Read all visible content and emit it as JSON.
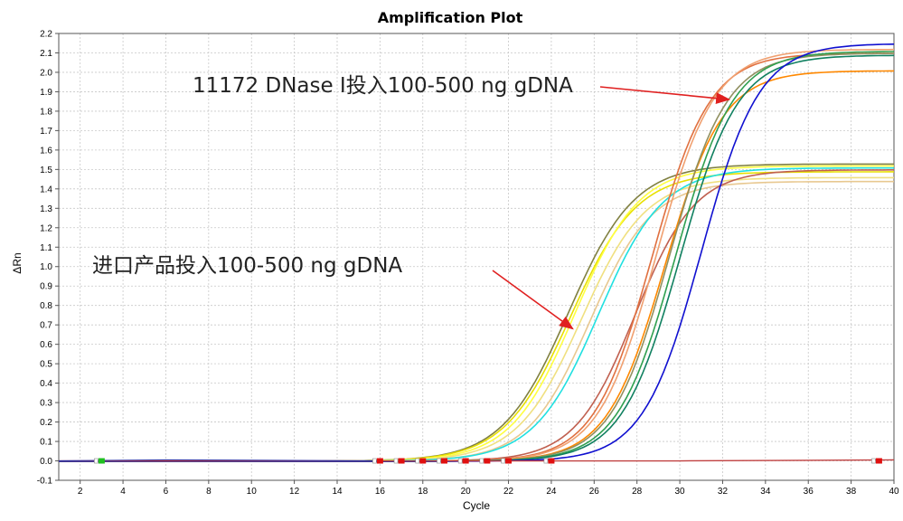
{
  "chart_data": {
    "type": "line",
    "title": "Amplification Plot",
    "xlabel": "Cycle",
    "ylabel": "ΔRn",
    "xlim": [
      1,
      40
    ],
    "ylim": [
      -0.1,
      2.2
    ],
    "xticks": [
      "2",
      "4",
      "6",
      "8",
      "10",
      "12",
      "14",
      "16",
      "18",
      "20",
      "22",
      "24",
      "26",
      "28",
      "30",
      "32",
      "34",
      "36",
      "38",
      "40"
    ],
    "yticks": [
      "-0.1",
      "0.0",
      "0.1",
      "0.2",
      "0.3",
      "0.4",
      "0.5",
      "0.6",
      "0.7",
      "0.8",
      "0.9",
      "1.0",
      "1.1",
      "1.2",
      "1.3",
      "1.4",
      "1.5",
      "1.6",
      "1.7",
      "1.8",
      "1.9",
      "2.0",
      "2.1",
      "2.2"
    ],
    "grid": true,
    "annotations": [
      {
        "text": "11172 DNase I投入100-500 ng gDNA",
        "arrow_to": [
          32.3,
          1.86
        ]
      },
      {
        "text": "进口产品投入100-500 ng gDNA",
        "arrow_to": [
          25.0,
          0.68
        ]
      }
    ],
    "series": [
      {
        "color": "#808040",
        "x_mid": 24.8,
        "plateau": 1.53,
        "slope": 1.55
      },
      {
        "color": "#e8e000",
        "x_mid": 24.9,
        "plateau": 1.49,
        "slope": 1.55
      },
      {
        "color": "#ffff40",
        "x_mid": 25.1,
        "plateau": 1.52,
        "slope": 1.5
      },
      {
        "color": "#f0e080",
        "x_mid": 25.4,
        "plateau": 1.46,
        "slope": 1.5
      },
      {
        "color": "#e8c890",
        "x_mid": 25.8,
        "plateau": 1.44,
        "slope": 1.45
      },
      {
        "color": "#20e0e0",
        "x_mid": 26.2,
        "plateau": 1.51,
        "slope": 1.5
      },
      {
        "color": "#c06050",
        "x_mid": 27.9,
        "plateau": 1.5,
        "slope": 1.4
      },
      {
        "color": "#e07040",
        "x_mid": 28.7,
        "plateau": 2.1,
        "slope": 1.35
      },
      {
        "color": "#f0a070",
        "x_mid": 28.9,
        "plateau": 2.12,
        "slope": 1.35
      },
      {
        "color": "#ff8800",
        "x_mid": 29.3,
        "plateau": 2.01,
        "slope": 1.35
      },
      {
        "color": "#909060",
        "x_mid": 29.5,
        "plateau": 2.1,
        "slope": 1.35
      },
      {
        "color": "#30a050",
        "x_mid": 29.8,
        "plateau": 2.11,
        "slope": 1.35
      },
      {
        "color": "#108060",
        "x_mid": 30.0,
        "plateau": 2.09,
        "slope": 1.35
      },
      {
        "color": "#1010d0",
        "x_mid": 31.0,
        "plateau": 2.15,
        "slope": 1.35
      }
    ],
    "baseline_series": {
      "color": "#c04040",
      "values": [
        0.0,
        0.0,
        0.005
      ]
    },
    "start_markers": [
      3,
      16,
      17,
      18,
      19,
      20,
      21,
      22,
      24,
      39.3
    ]
  }
}
